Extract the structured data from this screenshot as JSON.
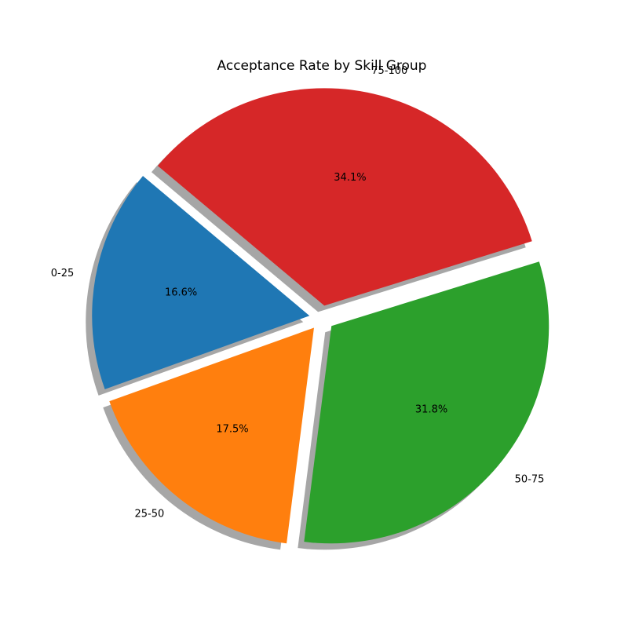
{
  "chart_data": {
    "type": "pie",
    "title": "Acceptance Rate by Skill Group",
    "slices": [
      {
        "label": "0-25",
        "value": 16.6,
        "value_label": "16.6%",
        "color": "#1f77b4"
      },
      {
        "label": "25-50",
        "value": 17.5,
        "value_label": "17.5%",
        "color": "#ff7f0e"
      },
      {
        "label": "50-75",
        "value": 31.8,
        "value_label": "31.8%",
        "color": "#2ca02c"
      },
      {
        "label": "75-100",
        "value": 34.1,
        "value_label": "34.1%",
        "color": "#d62728"
      }
    ],
    "start_angle_deg": 140,
    "direction": "counterclockwise",
    "exploded": true,
    "shadow": true
  }
}
